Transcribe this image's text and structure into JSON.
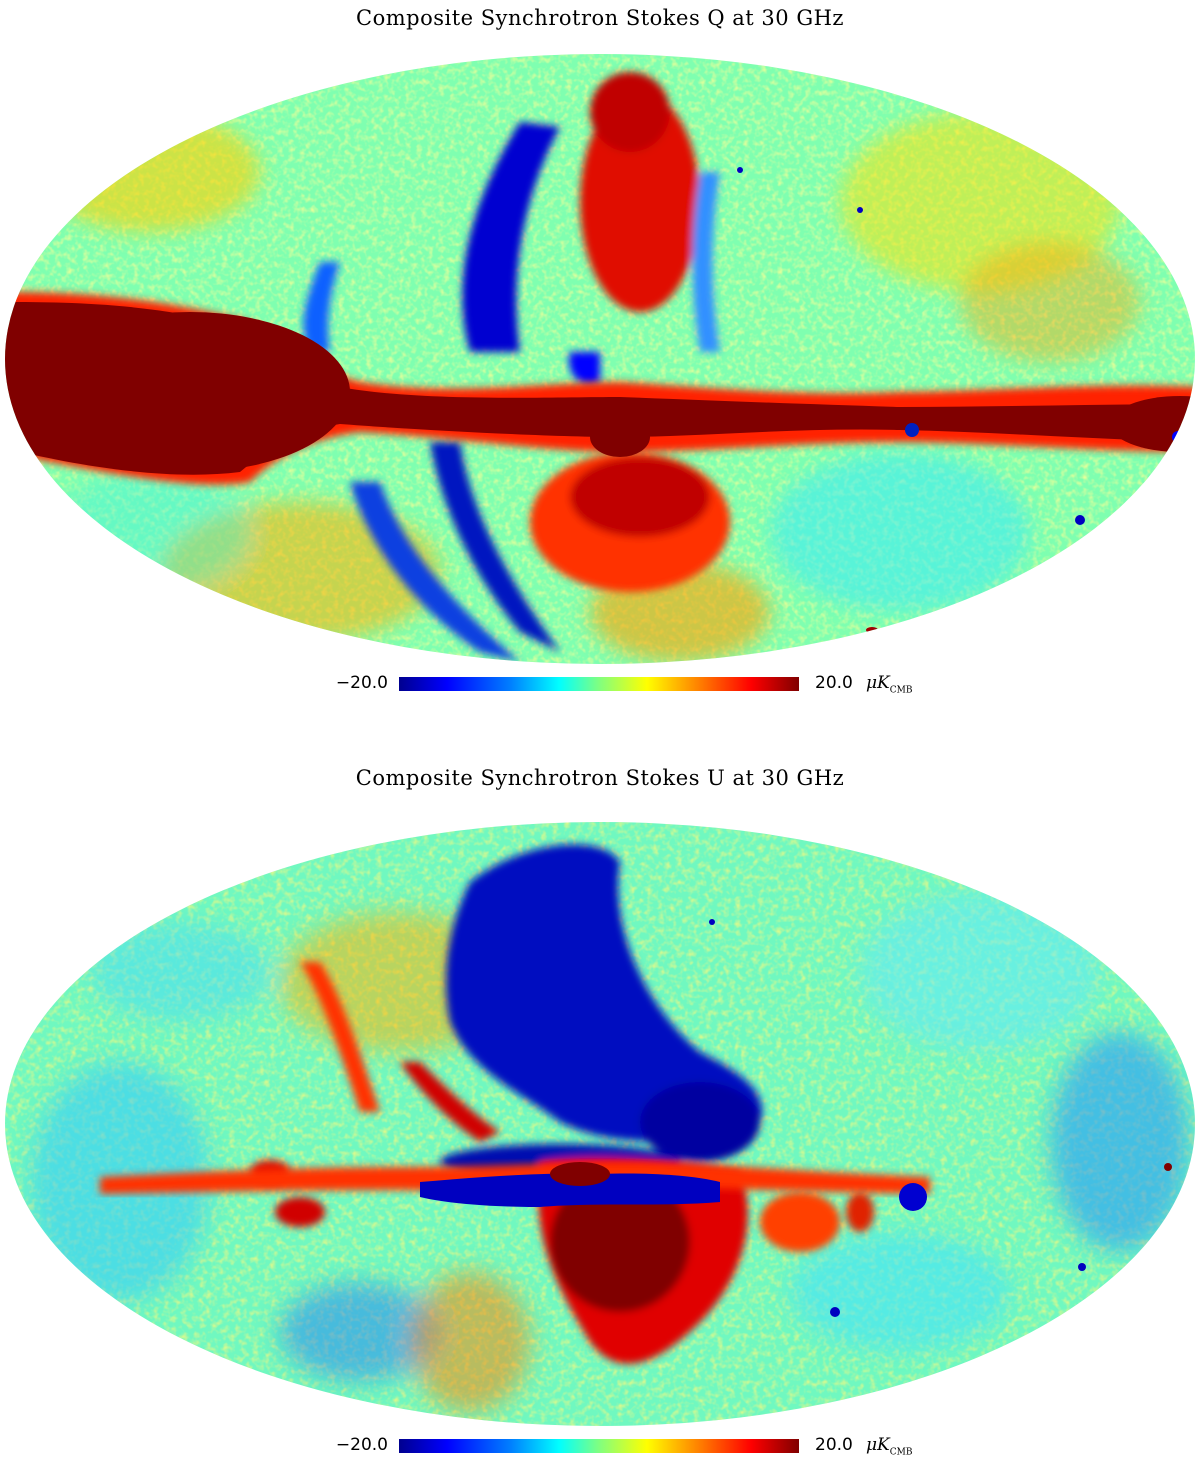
{
  "maps": [
    {
      "title": "Composite Synchrotron Stokes Q at 30 GHz",
      "colorbar": {
        "min": "−20.0",
        "max": "20.0",
        "unit_symbol": "μK",
        "unit_sub": "CMB"
      }
    },
    {
      "title": "Composite Synchrotron Stokes U at 30 GHz",
      "colorbar": {
        "min": "−20.0",
        "max": "20.0",
        "unit_symbol": "μK",
        "unit_sub": "CMB"
      }
    }
  ],
  "colormap": [
    "#00008f",
    "#0000ff",
    "#0080ff",
    "#00ffff",
    "#80ff80",
    "#ffff00",
    "#ff8000",
    "#ff0000",
    "#800000"
  ],
  "projection": "mollweide"
}
